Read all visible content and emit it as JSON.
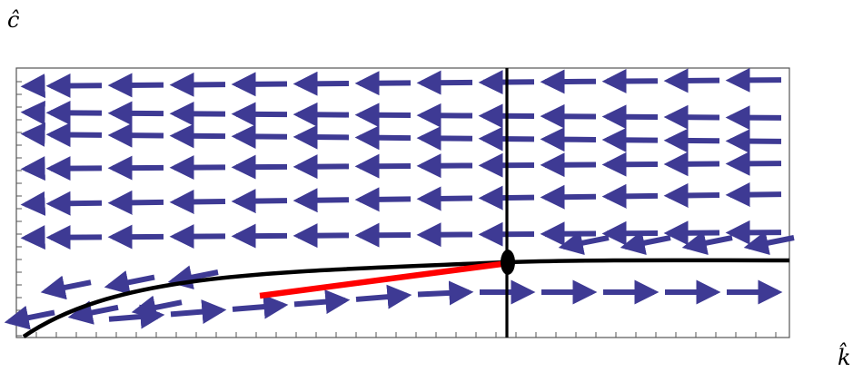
{
  "labels": {
    "c_axis": "ĉ",
    "k_axis": "k̂"
  },
  "colors": {
    "arrow": "#3E3A94",
    "curve": "#000000",
    "saddle_path": "#FF0000",
    "frame": "#555555",
    "steady_state": "#000000"
  },
  "diagram": {
    "type": "phase-diagram",
    "curves": [
      "c-dot-zero-locus",
      "k-dot-zero-locus"
    ],
    "markers": [
      "steady-state",
      "saddle-path"
    ]
  }
}
